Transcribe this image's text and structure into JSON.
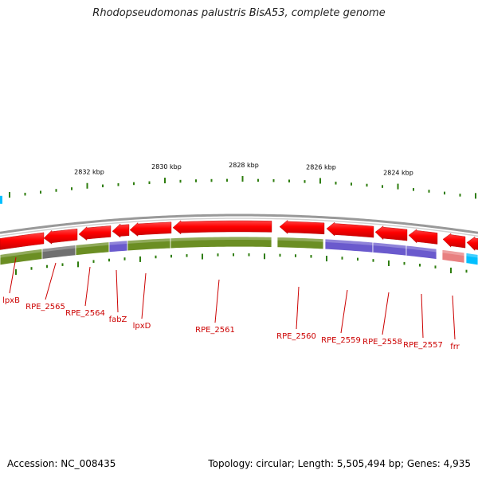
{
  "title": "Rhodopseudomonas palustris BisA53, complete genome",
  "footer": {
    "accession": "Accession: NC_008435",
    "topology": "Topology: circular; Length: 5,505,494 bp; Genes: 4,935"
  },
  "colors": {
    "gene": "#ff0000",
    "backbone": "#999999",
    "tick": "#2e7d0e",
    "label": "#cc0000",
    "cog_olive": "#6b8e23",
    "cog_gray": "#707070",
    "cog_purple": "#6a5acd",
    "cog_pink": "#e88080",
    "cog_cyan": "#00bfff"
  },
  "ruler": {
    "labels": [
      "2832 kbp",
      "2830 kbp",
      "2828 kbp",
      "2826 kbp",
      "2824 kbp"
    ]
  },
  "genes": [
    {
      "label": "lpxB",
      "color": "#ff0000"
    },
    {
      "label": "RPE_2565",
      "color": "#ff0000"
    },
    {
      "label": "RPE_2564",
      "color": "#ff0000"
    },
    {
      "label": "fabZ",
      "color": "#ff0000"
    },
    {
      "label": "lpxD",
      "color": "#ff0000"
    },
    {
      "label": "RPE_2561",
      "color": "#ff0000"
    },
    {
      "label": "RPE_2560",
      "color": "#ff0000"
    },
    {
      "label": "RPE_2559",
      "color": "#ff0000"
    },
    {
      "label": "RPE_2558",
      "color": "#ff0000"
    },
    {
      "label": "RPE_2557",
      "color": "#ff0000"
    },
    {
      "label": "frr",
      "color": "#ff0000"
    }
  ]
}
